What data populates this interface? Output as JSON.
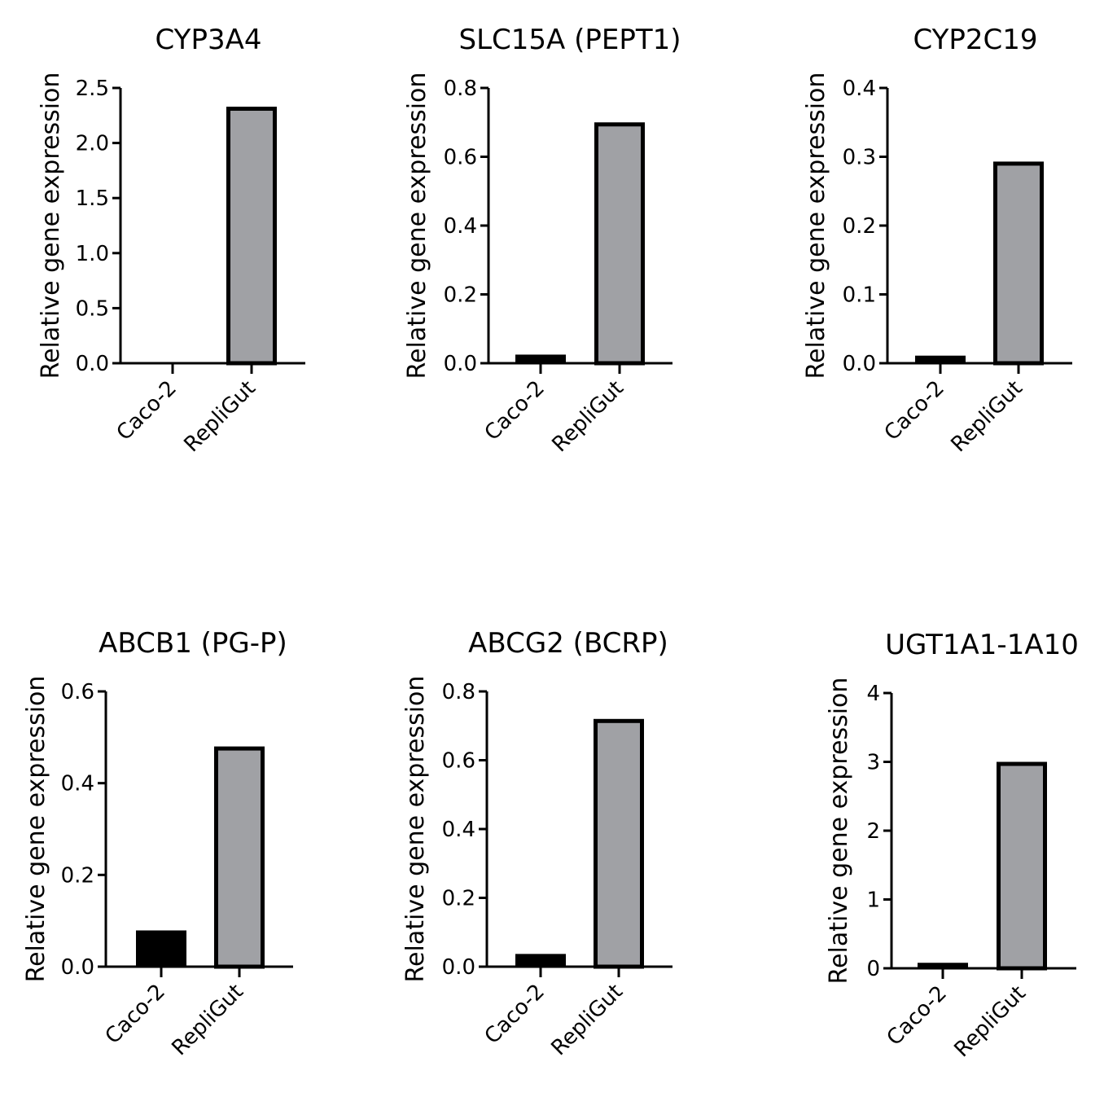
{
  "chart_data": [
    {
      "type": "bar",
      "title": "CYP3A4",
      "ylabel": "Relative gene expression",
      "categories": [
        "Caco-2",
        "RepliGut"
      ],
      "values": [
        0.0,
        2.33
      ],
      "ylim": [
        0,
        2.5
      ],
      "yticks": [
        0,
        0.5,
        1,
        1.5,
        2,
        2.5
      ],
      "ytick_labels": [
        "0.0",
        "0.5",
        "1.0",
        "1.5",
        "2.0",
        "2.5"
      ],
      "colors": [
        "#000000",
        "#a0a1a5"
      ],
      "grid": false,
      "legend": "none"
    },
    {
      "type": "bar",
      "title": "SLC15A (PEPT1)",
      "ylabel": "Relative gene expression",
      "categories": [
        "Caco-2",
        "RepliGut"
      ],
      "values": [
        0.025,
        0.7
      ],
      "ylim": [
        0,
        0.8
      ],
      "yticks": [
        0,
        0.2,
        0.4,
        0.6,
        0.8
      ],
      "ytick_labels": [
        "0.0",
        "0.2",
        "0.4",
        "0.6",
        "0.8"
      ],
      "colors": [
        "#000000",
        "#a0a1a5"
      ],
      "grid": false,
      "legend": "none"
    },
    {
      "type": "bar",
      "title": "CYP2C19",
      "ylabel": "Relative gene expression",
      "categories": [
        "Caco-2",
        "RepliGut"
      ],
      "values": [
        0.011,
        0.293
      ],
      "ylim": [
        0,
        0.4
      ],
      "yticks": [
        0,
        0.1,
        0.2,
        0.3,
        0.4
      ],
      "ytick_labels": [
        "0.0",
        "0.1",
        "0.2",
        "0.3",
        "0.4"
      ],
      "colors": [
        "#000000",
        "#a0a1a5"
      ],
      "grid": false,
      "legend": "none"
    },
    {
      "type": "bar",
      "title": "ABCB1 (PG-P)",
      "ylabel": "Relative gene expression",
      "categories": [
        "Caco-2",
        "RepliGut"
      ],
      "values": [
        0.079,
        0.48
      ],
      "ylim": [
        0,
        0.6
      ],
      "yticks": [
        0,
        0.2,
        0.4,
        0.6
      ],
      "ytick_labels": [
        "0.0",
        "0.2",
        "0.4",
        "0.6"
      ],
      "colors": [
        "#000000",
        "#a0a1a5"
      ],
      "grid": false,
      "legend": "none"
    },
    {
      "type": "bar",
      "title": "ABCG2 (BCRP)",
      "ylabel": "Relative gene expression",
      "categories": [
        "Caco-2",
        "RepliGut"
      ],
      "values": [
        0.037,
        0.72
      ],
      "ylim": [
        0,
        0.8
      ],
      "yticks": [
        0,
        0.2,
        0.4,
        0.6,
        0.8
      ],
      "ytick_labels": [
        "0.0",
        "0.2",
        "0.4",
        "0.6",
        "0.8"
      ],
      "colors": [
        "#000000",
        "#a0a1a5"
      ],
      "grid": false,
      "legend": "none"
    },
    {
      "type": "bar",
      "title": "UGT1A1-1A10",
      "ylabel": "Relative gene expression",
      "categories": [
        "Caco-2",
        "RepliGut"
      ],
      "values": [
        0.08,
        3.0
      ],
      "ylim": [
        0,
        4
      ],
      "yticks": [
        0,
        1,
        2,
        3,
        4
      ],
      "ytick_labels": [
        "0",
        "1",
        "2",
        "3",
        "4"
      ],
      "colors": [
        "#000000",
        "#a0a1a5"
      ],
      "grid": false,
      "legend": "none"
    }
  ]
}
